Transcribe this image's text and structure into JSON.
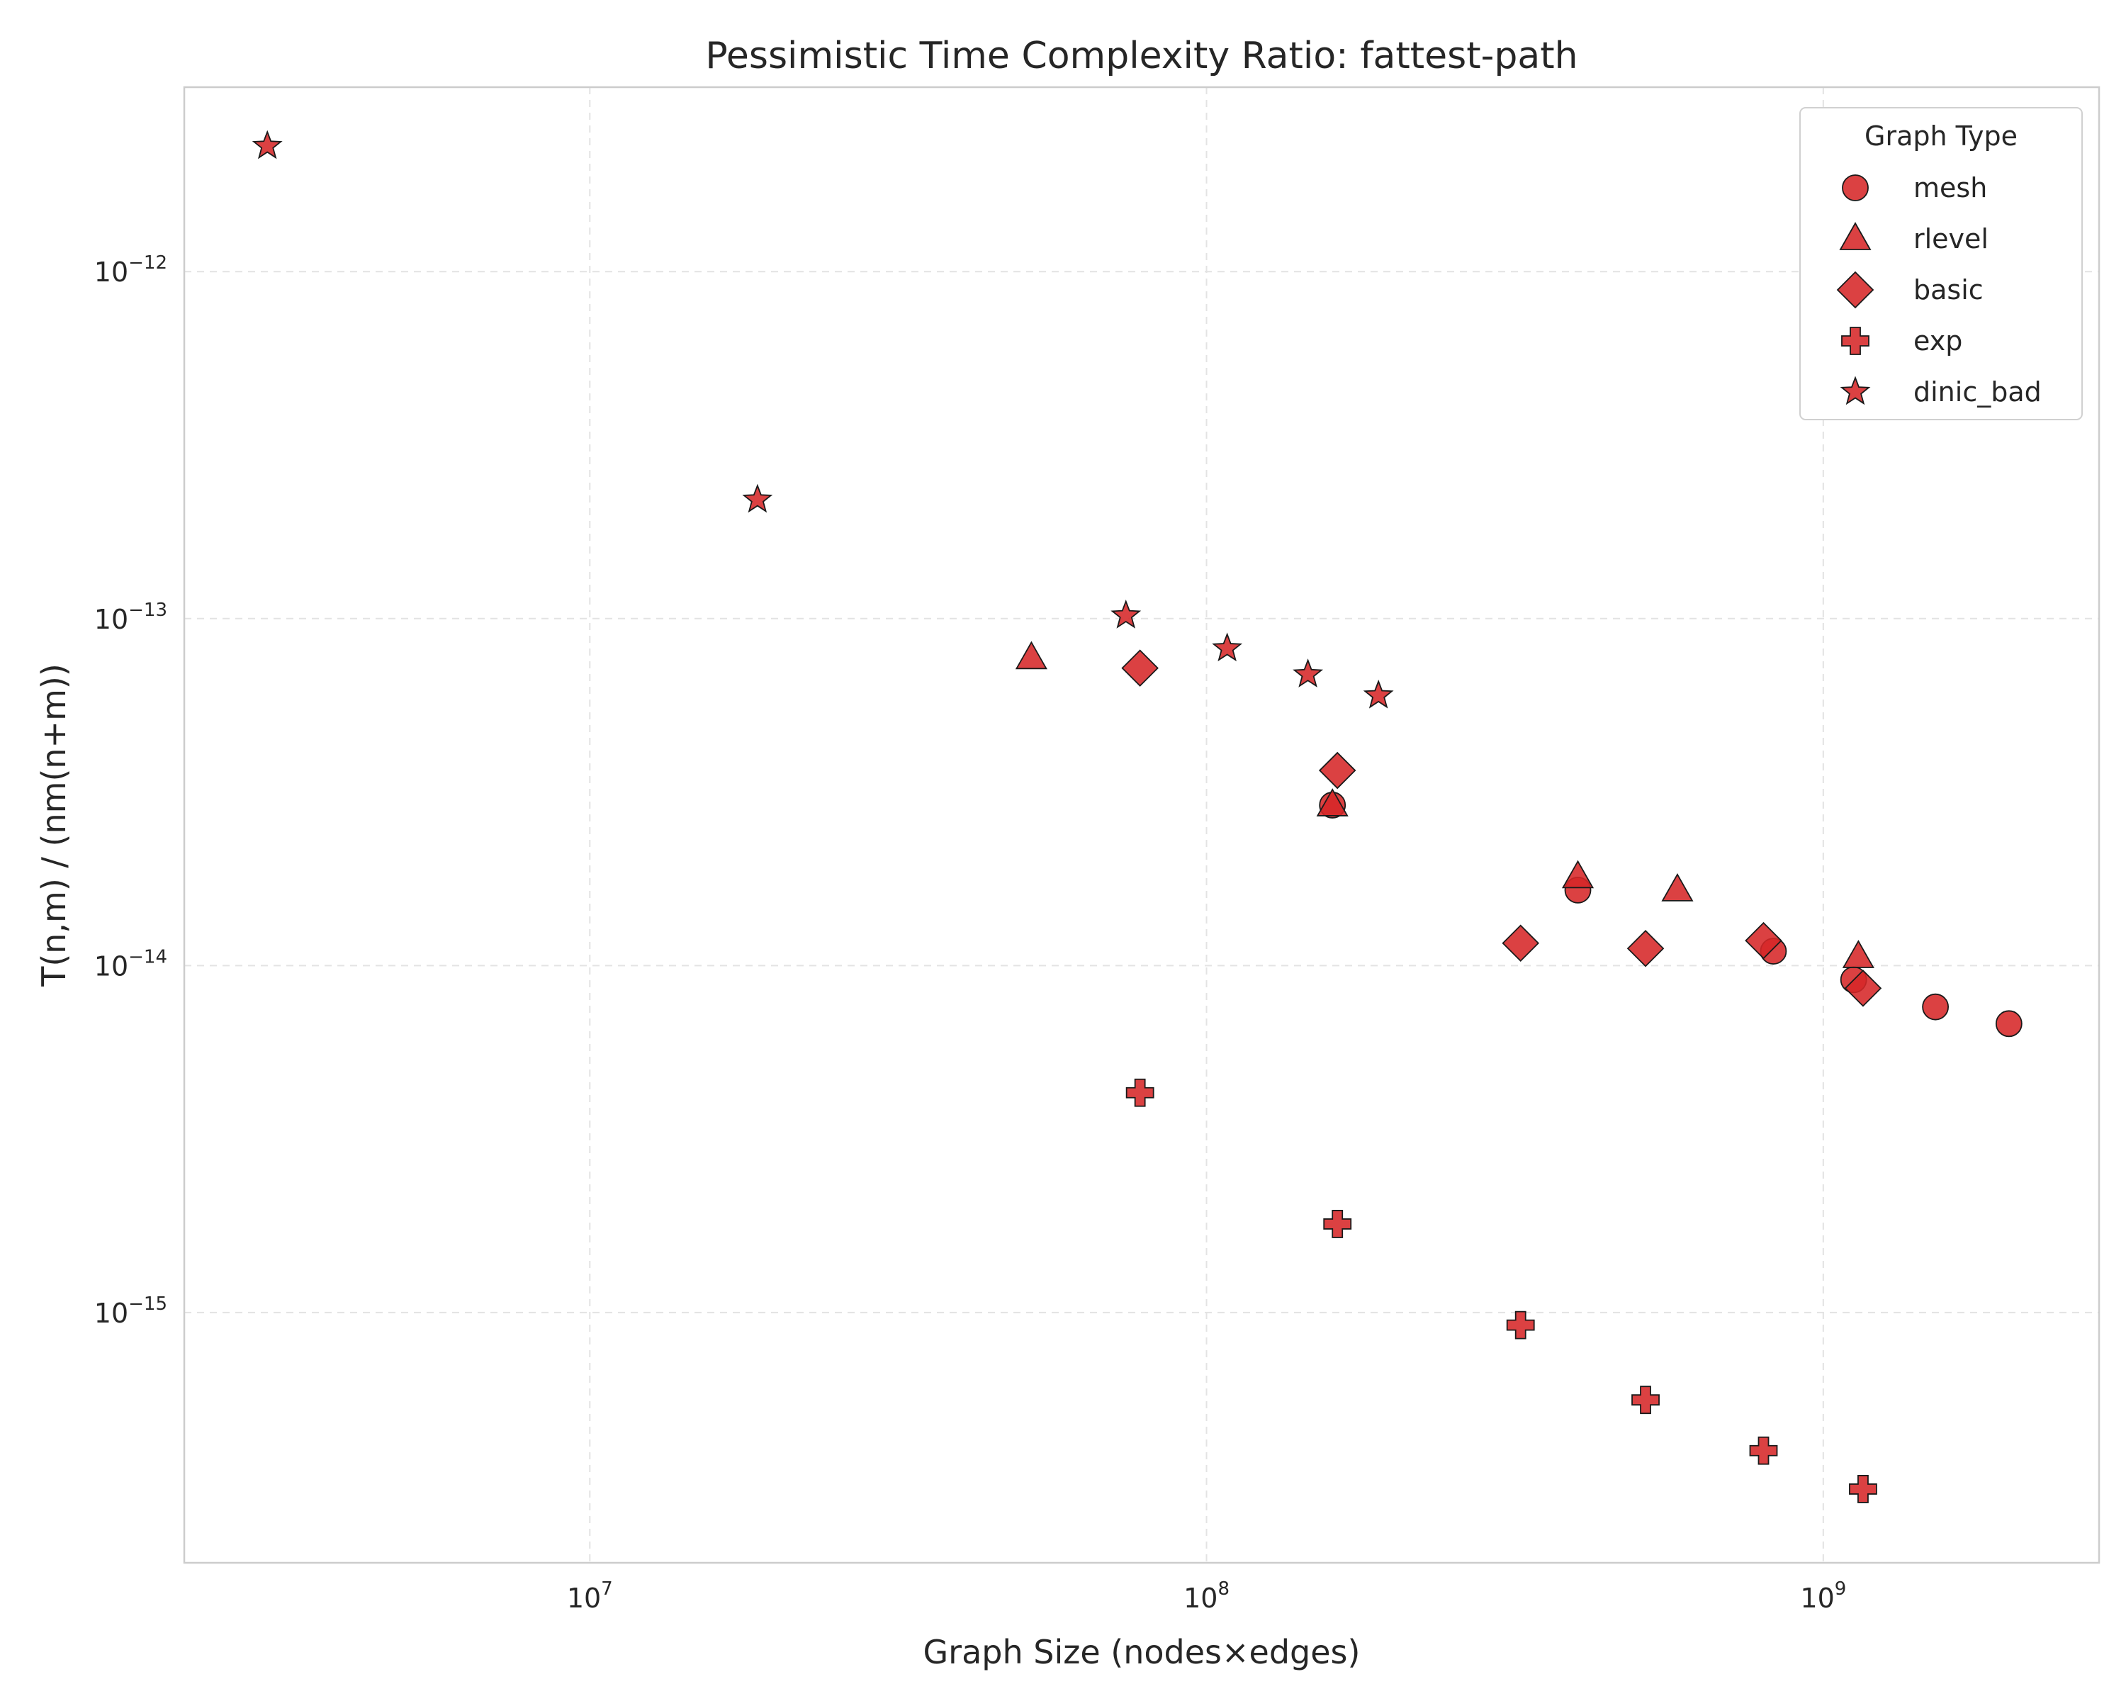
{
  "chart_data": {
    "type": "scatter",
    "title": "Pessimistic Time Complexity Ratio: fattest-path",
    "xlabel": "Graph Size (nodes×edges)",
    "ylabel": "T(n,m) / (nm(n+m))",
    "xscale": "log",
    "yscale": "log",
    "xlim": [
      2200000,
      2800000000
    ],
    "ylim": [
      1.9e-16,
      3.4e-12
    ],
    "x_ticks": [
      {
        "value": 10000000,
        "base": "10",
        "exp": "7"
      },
      {
        "value": 100000000,
        "base": "10",
        "exp": "8"
      },
      {
        "value": 1000000000,
        "base": "10",
        "exp": "9"
      }
    ],
    "y_ticks": [
      {
        "value": 1e-15,
        "base": "10",
        "exp": "−15"
      },
      {
        "value": 1e-14,
        "base": "10",
        "exp": "−14"
      },
      {
        "value": 1e-13,
        "base": "10",
        "exp": "−13"
      },
      {
        "value": 1e-12,
        "base": "10",
        "exp": "−12"
      }
    ],
    "grid": true,
    "legend": {
      "title": "Graph Type",
      "position": "top-right"
    },
    "color": "#d62728",
    "series": [
      {
        "name": "mesh",
        "marker": "circle",
        "x": [
          160000000,
          400000000,
          830000000,
          1120000000,
          1520000000,
          2000000000
        ],
        "y": [
          2.9e-14,
          1.65e-14,
          1.1e-14,
          9.1e-15,
          7.6e-15,
          6.8e-15
        ]
      },
      {
        "name": "rlevel",
        "marker": "triangle",
        "x": [
          52000000,
          160000000,
          400000000,
          580000000,
          1140000000
        ],
        "y": [
          7.7e-14,
          2.9e-14,
          1.8e-14,
          1.65e-14,
          1.06e-14
        ]
      },
      {
        "name": "basic",
        "marker": "diamond",
        "x": [
          78000000,
          163000000,
          323000000,
          515000000,
          800000000,
          1160000000
        ],
        "y": [
          7.2e-14,
          3.65e-14,
          1.16e-14,
          1.12e-14,
          1.18e-14,
          8.6e-15
        ]
      },
      {
        "name": "exp",
        "marker": "plus",
        "x": [
          78000000,
          163000000,
          323000000,
          515000000,
          800000000,
          1160000000
        ],
        "y": [
          4.3e-15,
          1.8e-15,
          9.2e-16,
          5.6e-16,
          4e-16,
          3.1e-16
        ]
      },
      {
        "name": "dinic_bad",
        "marker": "star",
        "x": [
          3000000,
          18700000,
          74000000,
          108000000,
          146000000,
          190000000
        ],
        "y": [
          2.3e-12,
          2.2e-13,
          1.02e-13,
          8.2e-14,
          6.9e-14,
          6e-14
        ]
      }
    ]
  }
}
